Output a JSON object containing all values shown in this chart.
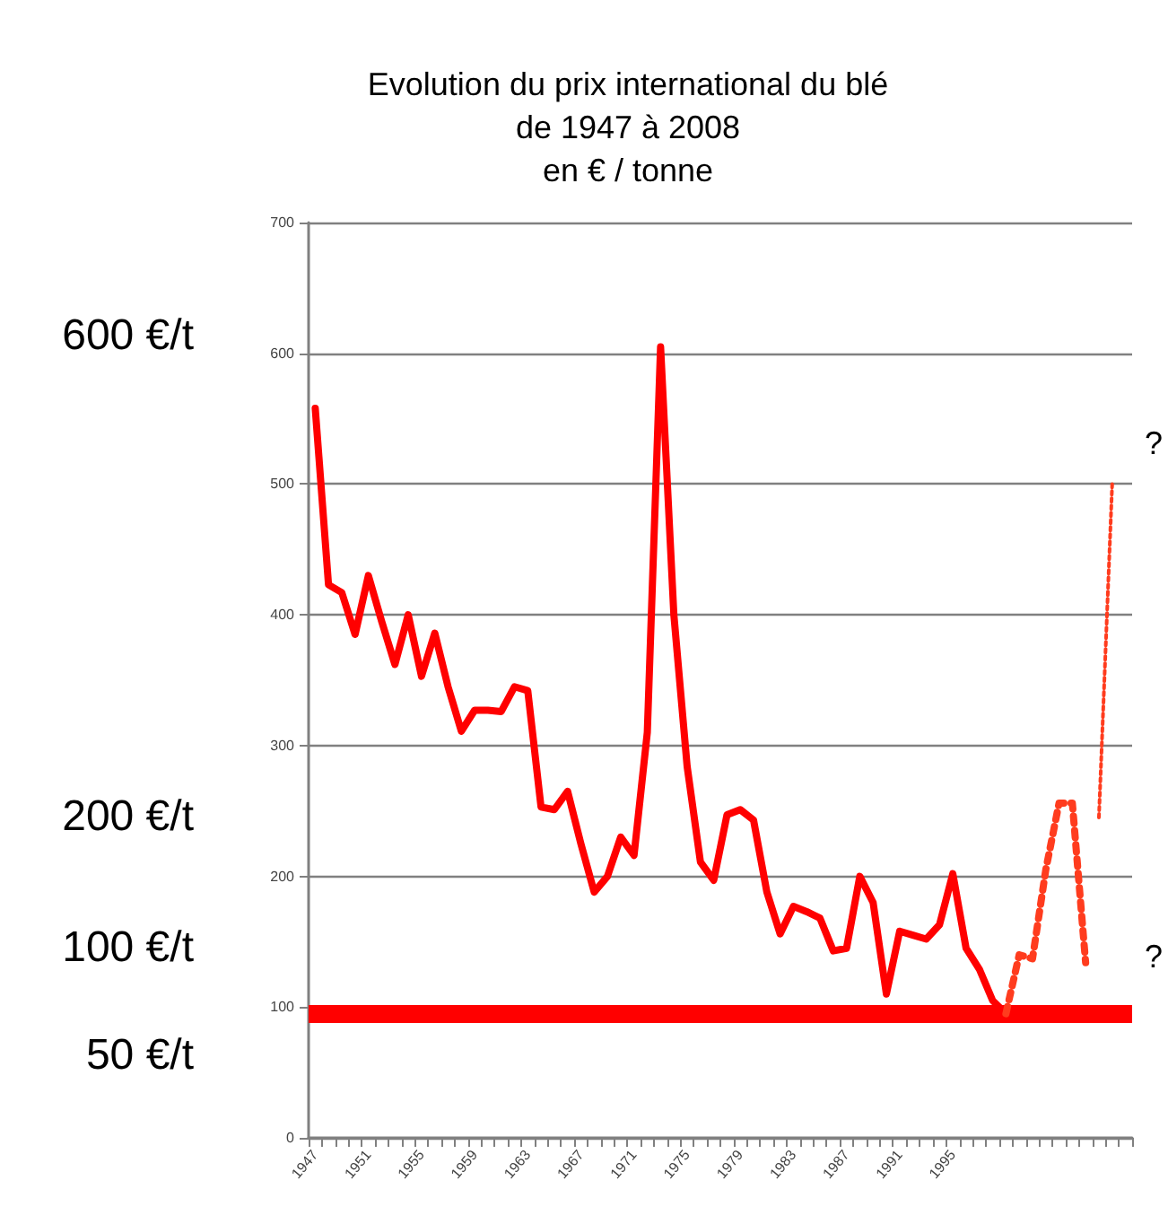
{
  "chart_data": {
    "type": "line",
    "title": "Evolution du prix international du blé\nde 1947 à 2008\nen € / tonne",
    "categories": [
      "1947",
      null,
      null,
      null,
      "1951",
      null,
      null,
      null,
      "1955",
      null,
      null,
      null,
      "1959",
      null,
      null,
      null,
      "1963",
      null,
      null,
      null,
      "1967",
      null,
      null,
      null,
      "1971",
      null,
      null,
      null,
      "1975",
      null,
      null,
      null,
      "1979",
      null,
      null,
      null,
      "1983",
      null,
      null,
      null,
      "1987",
      null,
      null,
      null,
      "1991",
      null,
      null,
      null,
      "1995",
      null,
      null,
      null,
      null,
      null,
      null,
      null,
      null,
      null,
      null,
      null,
      null,
      null
    ],
    "series": [
      {
        "color": "#ff0000",
        "line_style": "solid",
        "values": [
          558,
          423,
          417,
          385,
          430,
          395,
          362,
          400,
          353,
          386,
          345,
          311,
          327,
          327,
          326,
          345,
          342,
          253,
          251,
          265,
          225,
          188,
          200,
          230,
          216,
          310,
          605,
          400,
          284,
          211,
          197,
          247,
          251,
          243,
          188,
          156,
          177,
          173,
          168,
          143,
          145,
          200,
          180,
          110,
          158,
          155,
          152,
          163,
          202,
          145,
          129,
          105,
          95,
          null,
          null,
          null,
          null,
          null,
          null,
          null,
          null,
          null
        ]
      },
      {
        "color": "#ff3c1e",
        "line_style": "dotted",
        "values": [
          null,
          null,
          null,
          null,
          null,
          null,
          null,
          null,
          null,
          null,
          null,
          null,
          null,
          null,
          null,
          null,
          null,
          null,
          null,
          null,
          null,
          null,
          null,
          null,
          null,
          null,
          null,
          null,
          null,
          null,
          null,
          null,
          null,
          null,
          null,
          null,
          null,
          null,
          null,
          null,
          null,
          null,
          null,
          null,
          null,
          null,
          null,
          null,
          null,
          null,
          null,
          null,
          95,
          140,
          137,
          205,
          256,
          256,
          134,
          null,
          null,
          null
        ]
      },
      {
        "color": "#ff3c1e",
        "line_style": "dotted",
        "values": [
          null,
          null,
          null,
          null,
          null,
          null,
          null,
          null,
          null,
          null,
          null,
          null,
          null,
          null,
          null,
          null,
          null,
          null,
          null,
          null,
          null,
          null,
          null,
          null,
          null,
          null,
          null,
          null,
          null,
          null,
          null,
          null,
          null,
          null,
          null,
          null,
          null,
          null,
          null,
          null,
          null,
          null,
          null,
          null,
          null,
          null,
          null,
          null,
          null,
          null,
          null,
          null,
          null,
          null,
          null,
          null,
          null,
          null,
          null,
          245,
          500,
          null
        ]
      }
    ],
    "ylim": [
      0,
      700
    ],
    "yticks": [
      0,
      100,
      200,
      300,
      400,
      500,
      600,
      700
    ],
    "grid": "y",
    "marker": "none",
    "ref_lines": [
      {
        "axis": "y",
        "value": 95,
        "color": "#ff0000"
      }
    ],
    "annotations": [
      "600 €/t",
      "200 €/t",
      "100 €/t",
      "50 €/t",
      "?",
      "?"
    ]
  }
}
